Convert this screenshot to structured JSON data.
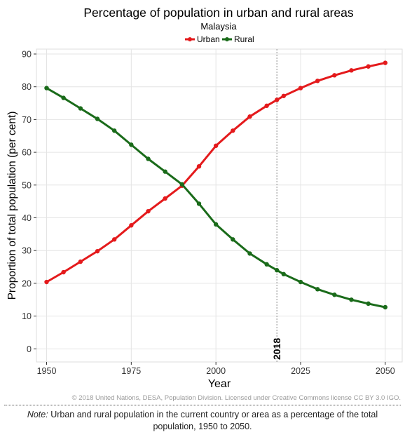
{
  "chart_data": {
    "type": "line",
    "title": "Percentage of population in urban and rural areas",
    "subtitle": "Malaysia",
    "xlabel": "Year",
    "ylabel": "Proportion of total population (per cent)",
    "xlim": [
      1947,
      2055
    ],
    "ylim": [
      -4,
      91.5
    ],
    "x_ticks": [
      1950,
      1975,
      2000,
      2025,
      2050
    ],
    "y_ticks": [
      0,
      10,
      20,
      30,
      40,
      50,
      60,
      70,
      80,
      90
    ],
    "grid": true,
    "legend_position": "top-center",
    "reference_line": {
      "x": 2018,
      "label": "2018"
    },
    "x": [
      1950,
      1955,
      1960,
      1965,
      1970,
      1975,
      1980,
      1985,
      1990,
      1995,
      2000,
      2005,
      2010,
      2015,
      2018,
      2020,
      2025,
      2030,
      2035,
      2040,
      2045,
      2050
    ],
    "series": [
      {
        "name": "Urban",
        "color": "#e41a1c",
        "values": [
          20.4,
          23.4,
          26.6,
          29.8,
          33.4,
          37.7,
          42.0,
          45.9,
          49.8,
          55.7,
          62.0,
          66.6,
          70.9,
          74.2,
          76.0,
          77.2,
          79.6,
          81.8,
          83.5,
          85.0,
          86.2,
          87.3
        ]
      },
      {
        "name": "Rural",
        "color": "#1a6b1a",
        "values": [
          79.6,
          76.6,
          73.4,
          70.2,
          66.6,
          62.3,
          58.0,
          54.1,
          50.2,
          44.3,
          38.0,
          33.4,
          29.1,
          25.8,
          24.0,
          22.8,
          20.4,
          18.2,
          16.5,
          15.0,
          13.8,
          12.7
        ]
      }
    ]
  },
  "credit": "© 2018 United Nations, DESA, Population Division. Licensed under Creative Commons license CC BY 3.0 IGO.",
  "note": {
    "label": "Note:",
    "text": " Urban and rural population in the current country or area as a percentage of the total population, 1950 to 2050."
  }
}
